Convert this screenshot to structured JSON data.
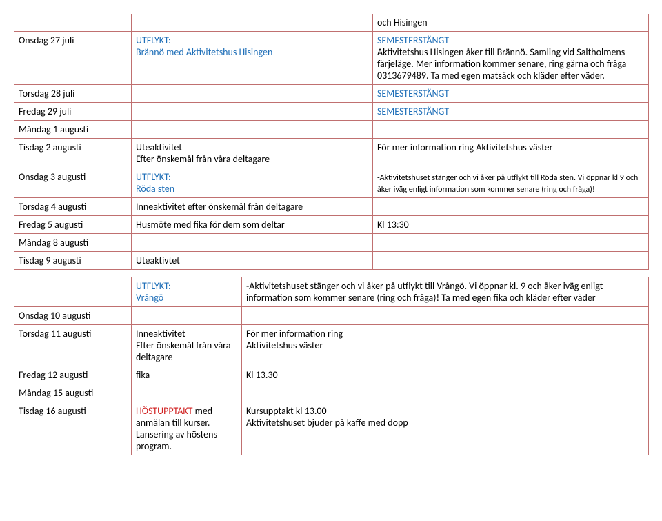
{
  "colors": {
    "border": "#c07070",
    "blue": "#1f6fb8",
    "red": "#d02020",
    "text": "#000000",
    "bg": "#ffffff"
  },
  "topRightPre": "och Hisingen",
  "rows1": [
    {
      "date": "Onsdag    27 juli",
      "activity_blue": "UTFLYKT:\nBrännö med Aktivitetshus Hisingen",
      "note_blue": "SEMESTERSTÄNGT",
      "note_black": "Aktivitetshus Hisingen åker till Brännö. Samling vid Saltholmens färjeläge. Mer information kommer senare, ring gärna och fråga 0313679489. Ta med egen matsäck och kläder efter väder."
    },
    {
      "date": "Torsdag   28 juli",
      "activity": "",
      "note_blue": "SEMESTERSTÄNGT"
    },
    {
      "date": "Fredag     29 juli",
      "activity": "",
      "note_blue": "SEMESTERSTÄNGT"
    },
    {
      "date": "Måndag   1 augusti",
      "activity": "",
      "note": ""
    },
    {
      "date": "Tisdag     2 augusti",
      "activity": "Uteaktivitet\nEfter önskemål från våra deltagare",
      "note": "För mer information ring Aktivitetshus väster"
    },
    {
      "date": "Onsdag    3 augusti",
      "activity_blue": "UTFLYKT:\n Röda sten",
      "note_small": "-Aktivitetshuset  stänger och vi åker på utflykt till Röda sten. Vi öppnar kl 9 och åker iväg enligt information som kommer senare (ring och fråga)!"
    },
    {
      "date": "Torsdag  4 augusti",
      "activity": "Inneaktivitet efter önskemål från deltagare",
      "note": ""
    },
    {
      "date": "Fredag     5 augusti",
      "activity": "Husmöte med fika för dem som deltar",
      "note": "Kl 13:30"
    },
    {
      "date": "Måndag  8 augusti",
      "activity": "",
      "note": ""
    },
    {
      "date": "Tisdag     9 augusti",
      "activity": "Uteaktivtet",
      "note": ""
    }
  ],
  "rows2": [
    {
      "date": "",
      "act_blue": "UTFLYKT:\nVrångö",
      "note": "-Aktivitetshuset  stänger och vi åker på utflykt till Vrångö. Vi öppnar kl. 9 och åker iväg enligt information som kommer senare (ring och fråga)! Ta med egen fika och kläder efter väder"
    },
    {
      "date": "Onsdag    10 augusti",
      "act": "",
      "note": ""
    },
    {
      "date": "Torsdag  11 augusti",
      "act": "Inneaktivitet\nEfter önskemål från våra deltagare",
      "note": "För mer information ring\nAktivitetshus väster"
    },
    {
      "date": "Fredag     12 augusti",
      "act": "fika",
      "note": "Kl 13.30"
    },
    {
      "date": "Måndag   15 augusti",
      "act": "",
      "note": ""
    },
    {
      "date": "Tisdag     16 augusti",
      "act_red": "HÖSTUPPTAKT",
      "act_after": " med anmälan till kurser. Lansering av höstens program.",
      "note": "Kursupptakt kl 13.00\nAktivitetshuset bjuder på kaffe med dopp"
    }
  ]
}
